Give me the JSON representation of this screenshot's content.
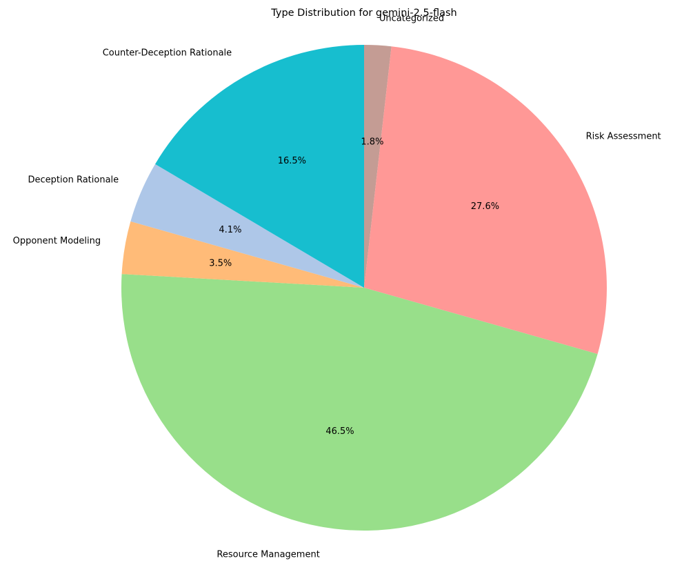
{
  "chart_data": {
    "type": "pie",
    "title": "Type Distribution for gemini-2.5-flash",
    "slices": [
      {
        "label": "Uncategorized",
        "value": 1.8,
        "pct_label": "1.8%",
        "color": "#c49c94"
      },
      {
        "label": "Risk Assessment",
        "value": 27.6,
        "pct_label": "27.6%",
        "color": "#ff9896"
      },
      {
        "label": "Resource Management",
        "value": 46.5,
        "pct_label": "46.5%",
        "color": "#98df8a"
      },
      {
        "label": "Opponent Modeling",
        "value": 3.5,
        "pct_label": "3.5%",
        "color": "#ffbb78"
      },
      {
        "label": "Deception Rationale",
        "value": 4.1,
        "pct_label": "4.1%",
        "color": "#aec7e8"
      },
      {
        "label": "Counter-Deception Rationale",
        "value": 16.5,
        "pct_label": "16.5%",
        "color": "#17becf"
      }
    ],
    "start_angle_deg": 90,
    "direction": "clockwise",
    "legend": "none"
  }
}
